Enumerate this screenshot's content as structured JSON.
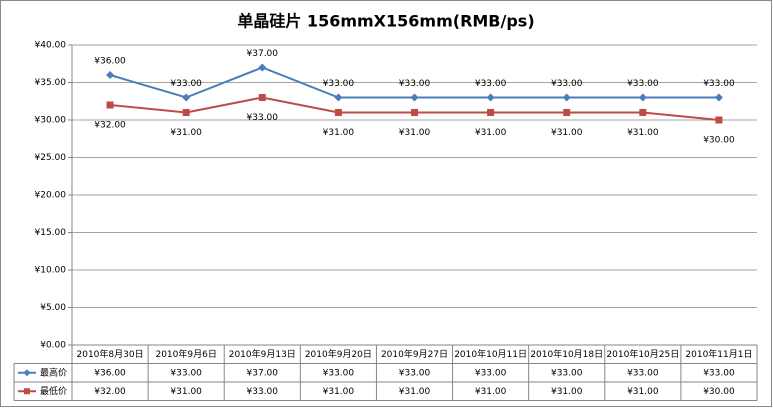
{
  "chart_data": {
    "type": "line",
    "title": "单晶硅片 156mmX156mm(RMB/ps)",
    "categories": [
      "2010年8月30日",
      "2010年9月6日",
      "2010年9月13日",
      "2010年9月20日",
      "2010年9月27日",
      "2010年10月11日",
      "2010年10月18日",
      "2010年10月25日",
      "2010年11月1日"
    ],
    "series": [
      {
        "name": "最高价",
        "color": "#4a7ebb",
        "marker": "diamond",
        "values": [
          36,
          33,
          37,
          33,
          33,
          33,
          33,
          33,
          33
        ],
        "value_labels": [
          "¥36.00",
          "¥33.00",
          "¥37.00",
          "¥33.00",
          "¥33.00",
          "¥33.00",
          "¥33.00",
          "¥33.00",
          "¥33.00"
        ]
      },
      {
        "name": "最低价",
        "color": "#be4b48",
        "marker": "square",
        "values": [
          32,
          31,
          33,
          31,
          31,
          31,
          31,
          31,
          30
        ],
        "value_labels": [
          "¥32.00",
          "¥31.00",
          "¥33.00",
          "¥31.00",
          "¥31.00",
          "¥31.00",
          "¥31.00",
          "¥31.00",
          "¥30.00"
        ]
      }
    ],
    "ylim": [
      0,
      40
    ],
    "yticks": [
      {
        "value": 0,
        "label": "¥0.00"
      },
      {
        "value": 5,
        "label": "¥5.00"
      },
      {
        "value": 10,
        "label": "¥10.00"
      },
      {
        "value": 15,
        "label": "¥15.00"
      },
      {
        "value": 20,
        "label": "¥20.00"
      },
      {
        "value": 25,
        "label": "¥25.00"
      },
      {
        "value": 30,
        "label": "¥30.00"
      },
      {
        "value": 35,
        "label": "¥35.00"
      },
      {
        "value": 40,
        "label": "¥40.00"
      }
    ],
    "grid": true
  }
}
